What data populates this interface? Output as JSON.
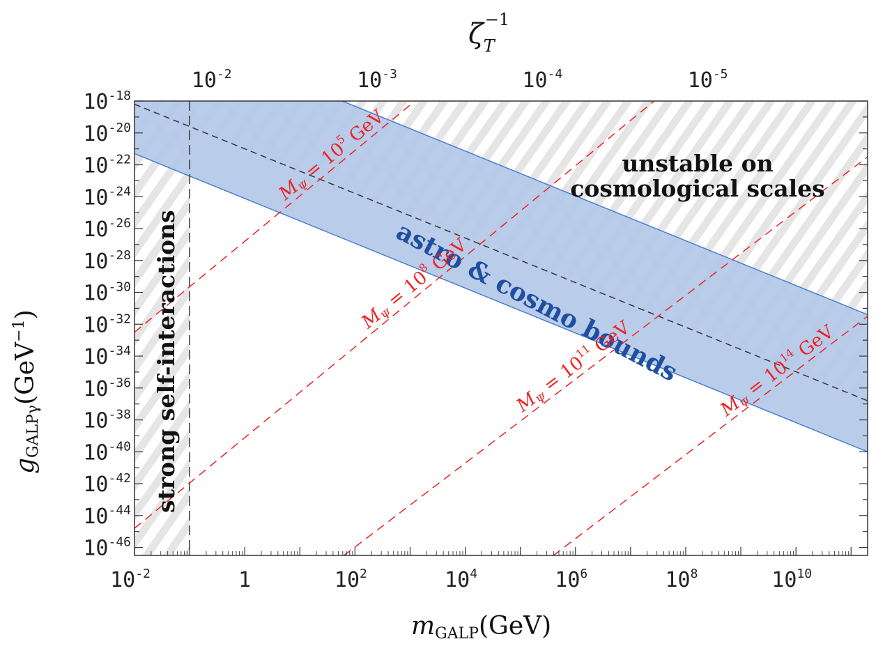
{
  "chart_data": {
    "type": "line",
    "x_axis": {
      "label_italic": "m",
      "label_sub": "GALP",
      "label_units": "(GeV)",
      "scale": "log10",
      "range": [
        -2,
        11.3
      ],
      "ticks": [
        {
          "value": -2,
          "base": "10",
          "exp": "-2"
        },
        {
          "value": 0,
          "base": "1",
          "exp": ""
        },
        {
          "value": 2,
          "base": "10",
          "exp": "2"
        },
        {
          "value": 4,
          "base": "10",
          "exp": "4"
        },
        {
          "value": 6,
          "base": "10",
          "exp": "6"
        },
        {
          "value": 8,
          "base": "10",
          "exp": "8"
        },
        {
          "value": 10,
          "base": "10",
          "exp": "10"
        }
      ]
    },
    "y_axis": {
      "label_italic": "g",
      "label_sub": "GALPγ",
      "label_units_open": "(GeV",
      "label_units_exp": "−1",
      "label_units_close": ")",
      "scale": "log10",
      "range": [
        -46.5,
        -18
      ],
      "ticks": [
        {
          "value": -18,
          "base": "10",
          "exp": "-18"
        },
        {
          "value": -20,
          "base": "10",
          "exp": "-20"
        },
        {
          "value": -22,
          "base": "10",
          "exp": "-22"
        },
        {
          "value": -24,
          "base": "10",
          "exp": "-24"
        },
        {
          "value": -26,
          "base": "10",
          "exp": "-26"
        },
        {
          "value": -28,
          "base": "10",
          "exp": "-28"
        },
        {
          "value": -30,
          "base": "10",
          "exp": "-30"
        },
        {
          "value": -32,
          "base": "10",
          "exp": "-32"
        },
        {
          "value": -34,
          "base": "10",
          "exp": "-34"
        },
        {
          "value": -36,
          "base": "10",
          "exp": "-36"
        },
        {
          "value": -38,
          "base": "10",
          "exp": "-38"
        },
        {
          "value": -40,
          "base": "10",
          "exp": "-40"
        },
        {
          "value": -42,
          "base": "10",
          "exp": "-42"
        },
        {
          "value": -44,
          "base": "10",
          "exp": "-44"
        },
        {
          "value": -46,
          "base": "10",
          "exp": "-46"
        }
      ]
    },
    "top_axis": {
      "label_base": "ζ",
      "label_sub": "T",
      "label_exp": "−1",
      "ticks": [
        {
          "at_log_m": -0.6,
          "base": "10",
          "exp": "-2"
        },
        {
          "at_log_m": 2.4,
          "base": "10",
          "exp": "-3"
        },
        {
          "at_log_m": 5.4,
          "base": "10",
          "exp": "-4"
        },
        {
          "at_log_m": 8.4,
          "base": "10",
          "exp": "-5"
        }
      ]
    },
    "regions": {
      "self_interaction_boundary_log_m": -1,
      "self_interaction_label": "strong self-interactions",
      "unstable_line": {
        "x0": -2,
        "y0": -18.2,
        "x1": 11.3,
        "y1": -36.8
      },
      "unstable_label_line1": "unstable on",
      "unstable_label_line2": "cosmological scales",
      "band_upper": {
        "x0": -2,
        "y0": -12.7,
        "x1": 11.3,
        "y1": -31.4
      },
      "band_lower": {
        "x0": -2,
        "y0": -21.3,
        "x1": 11.3,
        "y1": -40.0
      },
      "band_label": "astro & cosmo bounds",
      "band_color": "#b3c8e8",
      "band_edge_color": "#4a7fd0",
      "hatch_color": "#c9c9c9"
    },
    "series": [
      {
        "name": "M_Ψ = 10^5 GeV",
        "prefix": "M",
        "sub": "Ψ",
        "eq": " = 10",
        "exp": "5",
        "unit": " GeV",
        "x0": -2,
        "y0": -32.5,
        "x1": 8.0,
        "y1": -4.0,
        "label_at_x": 0.8,
        "color": "#ee2222"
      },
      {
        "name": "M_Ψ = 10^8 GeV",
        "prefix": "M",
        "sub": "Ψ",
        "eq": " = 10",
        "exp": "8",
        "unit": " GeV",
        "x0": -2,
        "y0": -44.8,
        "x1": 12.0,
        "y1": -5.0,
        "label_at_x": 2.3,
        "color": "#ee2222"
      },
      {
        "name": "M_Ψ = 10^11 GeV",
        "prefix": "M",
        "sub": "Ψ",
        "eq": " = 10",
        "exp": "11",
        "unit": " GeV",
        "x0": 1.8,
        "y0": -46.5,
        "x1": 11.3,
        "y1": -21.5,
        "label_at_x": 5.1,
        "color": "#ee2222"
      },
      {
        "name": "M_Ψ = 10^14 GeV",
        "prefix": "M",
        "sub": "Ψ",
        "eq": " = 10",
        "exp": "14",
        "unit": " GeV",
        "x0": 5.6,
        "y0": -46.5,
        "x1": 11.3,
        "y1": -31.5,
        "label_at_x": 8.8,
        "color": "#ee2222"
      }
    ]
  }
}
